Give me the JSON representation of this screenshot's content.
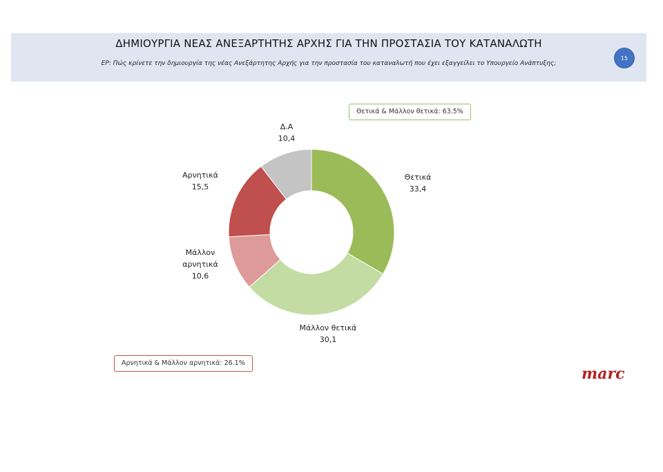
{
  "header": {
    "title": "ΔΗΜΙΟΥΡΓΙΑ ΝΕΑΣ ΑΝΕΞΑΡΤΗΤΗΣ ΑΡΧΗΣ ΓΙΑ ΤΗΝ ΠΡΟΣΤΑΣΙΑ ΤΟΥ ΚΑΤΑΝΑΛΩΤΗ",
    "question": "ΕΡ: Πώς κρίνετε την δημιουργία της νέας Ανεξάρτητης Αρχής για την προστασία του καταναλωτή που έχει εξαγγείλει το Υπουργείο Ανάπτυξης;",
    "page_number": "15"
  },
  "summaries": {
    "positive": "Θετικά & Μάλλον θετικά: 63.5%",
    "negative": "Αρνητικά & Μάλλον αρνητικά: 26.1%"
  },
  "logo": "marc",
  "chart_data": {
    "type": "donut",
    "slices": [
      {
        "label": "Θετικά",
        "value": 33.4,
        "value_text": "33,4",
        "color": "#9bbb59"
      },
      {
        "label": "Μάλλον θετικά",
        "value": 30.1,
        "value_text": "30,1",
        "color": "#c3dca4"
      },
      {
        "label": "Μάλλον αρνητικά",
        "value": 10.6,
        "value_text": "10,6",
        "color": "#de9a99"
      },
      {
        "label": "Αρνητικά",
        "value": 15.5,
        "value_text": "15,5",
        "color": "#c0504d"
      },
      {
        "label": "Δ.Α",
        "value": 10.4,
        "value_text": "10,4",
        "color": "#c4c4c4"
      }
    ]
  }
}
